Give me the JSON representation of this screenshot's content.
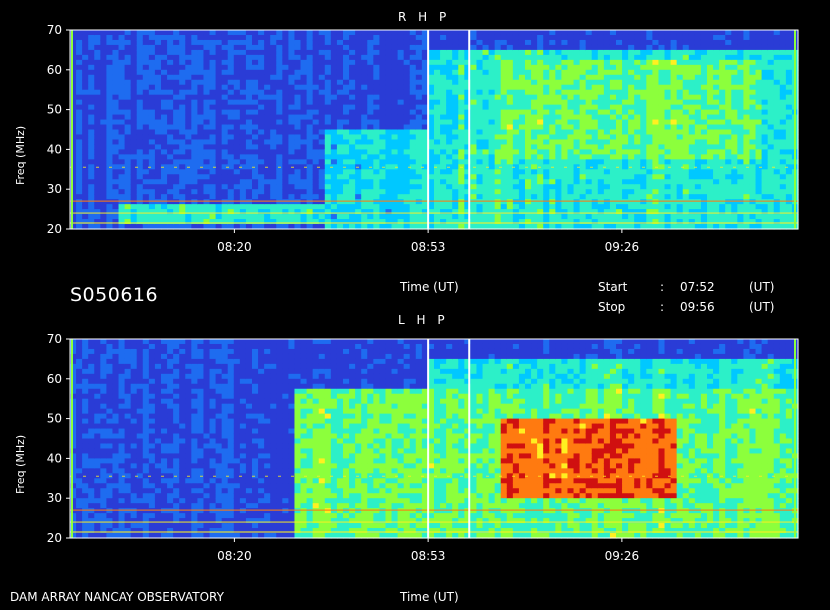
{
  "header": {
    "observation_id": "S050616"
  },
  "time_info": {
    "start_label": "Start",
    "start_sep": ":",
    "start_value": "07:52",
    "start_unit": "(UT)",
    "stop_label": "Stop",
    "stop_sep": ":",
    "stop_value": "09:56",
    "stop_unit": "(UT)"
  },
  "footer": {
    "observatory": "DAM ARRAY   NANCAY OBSERVATORY",
    "time_label": "Time (UT)"
  },
  "chart_data": [
    {
      "type": "heatmap",
      "title": "R H P",
      "xlabel": "Time (UT)",
      "ylabel": "Freq (MHz)",
      "x_ticks": [
        "08:20",
        "08:53",
        "09:26"
      ],
      "y_ticks": [
        20,
        30,
        40,
        50,
        60,
        70
      ],
      "ylim": [
        20,
        70
      ],
      "xlim": [
        "07:52",
        "09:56"
      ],
      "colormap": [
        "#2a3cd6",
        "#1e6cf0",
        "#00c8ff",
        "#2cf0c8",
        "#8cff3c",
        "#fff020",
        "#ff7a10",
        "#d01010"
      ],
      "regions": [
        {
          "t0": "07:52",
          "t1": "08:40",
          "f0": 20,
          "f1": 70,
          "level": 0.05
        },
        {
          "t0": "08:00",
          "t1": "08:35",
          "f0": 21,
          "f1": 26,
          "level": 0.35
        },
        {
          "t0": "08:35",
          "t1": "08:53",
          "f0": 20,
          "f1": 45,
          "level": 0.3
        },
        {
          "t0": "08:53",
          "t1": "09:56",
          "f0": 20,
          "f1": 65,
          "level": 0.35
        },
        {
          "t0": "09:05",
          "t1": "09:50",
          "f0": 38,
          "f1": 62,
          "level": 0.45
        }
      ]
    },
    {
      "type": "heatmap",
      "title": "L H P",
      "xlabel": "Time (UT)",
      "ylabel": "Freq (MHz)",
      "x_ticks": [
        "08:20",
        "08:53",
        "09:26"
      ],
      "y_ticks": [
        20,
        30,
        40,
        50,
        60,
        70
      ],
      "ylim": [
        20,
        70
      ],
      "xlim": [
        "07:52",
        "09:56"
      ],
      "colormap": [
        "#2a3cd6",
        "#1e6cf0",
        "#00c8ff",
        "#2cf0c8",
        "#8cff3c",
        "#fff020",
        "#ff7a10",
        "#d01010"
      ],
      "regions": [
        {
          "t0": "07:52",
          "t1": "08:30",
          "f0": 20,
          "f1": 70,
          "level": 0.05
        },
        {
          "t0": "08:30",
          "t1": "09:56",
          "f0": 20,
          "f1": 58,
          "level": 0.45
        },
        {
          "t0": "09:05",
          "t1": "09:35",
          "f0": 30,
          "f1": 50,
          "level": 0.8
        },
        {
          "t0": "08:53",
          "t1": "09:56",
          "f0": 20,
          "f1": 65,
          "level": 0.35
        }
      ]
    }
  ]
}
